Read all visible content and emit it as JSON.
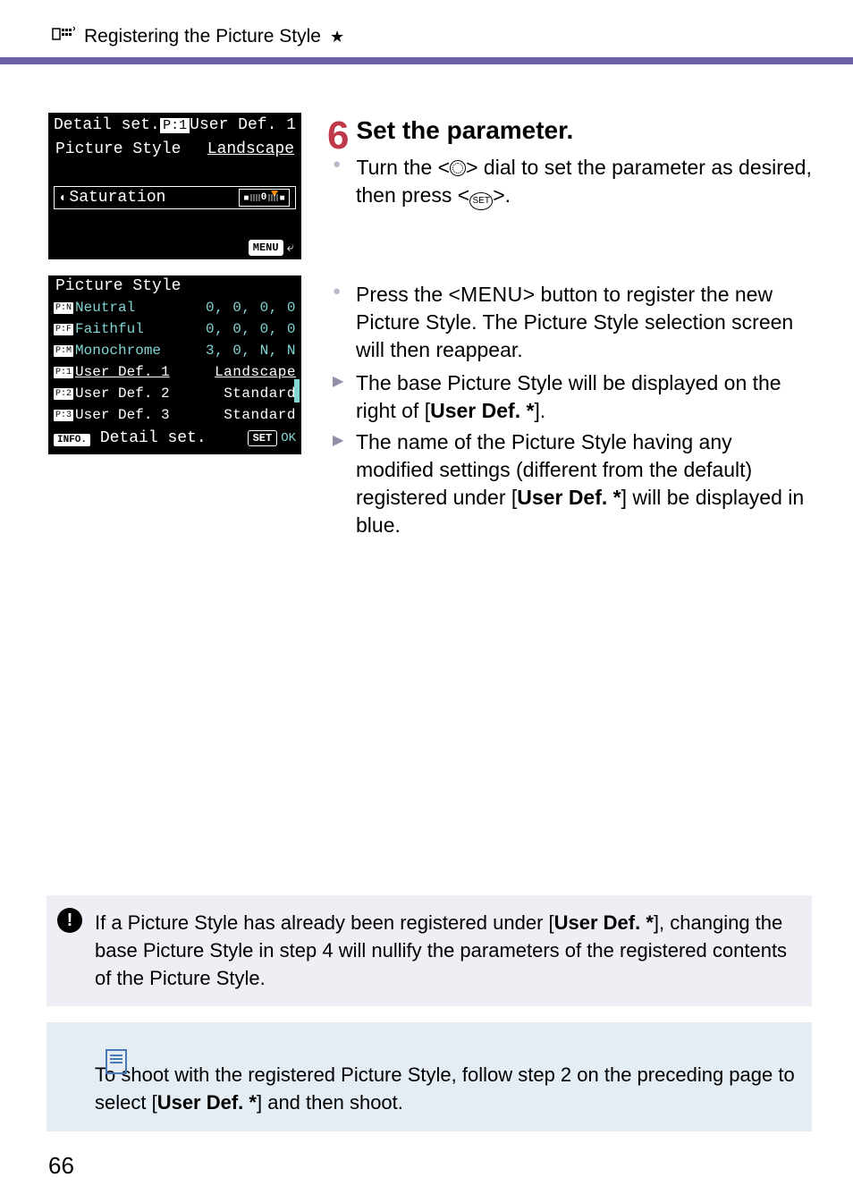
{
  "header": {
    "icon_label": "picture-style-icon",
    "title": "Registering the Picture Style",
    "star": "★"
  },
  "lcd1": {
    "row1_left": "Detail set.",
    "row1_right_icon": "P:1",
    "row1_right": "User Def. 1",
    "row2_left": "Picture Style",
    "row2_right": "Landscape",
    "sat_icon": "⚡",
    "sat_label": "Saturation",
    "menu_label": "MENU",
    "return_glyph": "⤶"
  },
  "lcd2": {
    "title": "Picture Style",
    "rows": [
      {
        "icon": "P:N",
        "name": "Neutral",
        "vals": "0, 0, 0, 0",
        "cls": ""
      },
      {
        "icon": "P:F",
        "name": "Faithful",
        "vals": "0, 0, 0, 0",
        "cls": ""
      },
      {
        "icon": "P:M",
        "name": "Monochrome",
        "vals": "3, 0, N, N",
        "cls": ""
      },
      {
        "icon": "P:1",
        "name": "User Def. 1",
        "vals": "Landscape",
        "cls": "highlight"
      },
      {
        "icon": "P:2",
        "name": "User Def. 2",
        "vals": "Standard",
        "cls": "white"
      },
      {
        "icon": "P:3",
        "name": "User Def. 3",
        "vals": "Standard",
        "cls": "white"
      }
    ],
    "footer_info": "INFO.",
    "footer_text": "Detail set.",
    "footer_set": "SET",
    "footer_ok": "OK"
  },
  "step": {
    "num": "6",
    "title": "Set the parameter.",
    "b1_a": "Turn the <",
    "b1_b": "> dial to set the parameter as desired, then press <",
    "b1_c": ">.",
    "set_txt": "SET",
    "b2_a": "Press the <",
    "b2_menu": "MENU",
    "b2_b": "> button to register the new Picture Style. The Picture Style selection screen will then reappear.",
    "t1_a": "The base Picture Style will be displayed on the right of [",
    "t1_bold": "User Def. *",
    "t1_b": "].",
    "t2_a": "The name of the Picture Style having any modified settings (different from the default) registered under [",
    "t2_bold": "User Def. *",
    "t2_b": "] will be displayed in blue."
  },
  "note1": {
    "a": "If a Picture Style has already been registered under [",
    "bold": "User Def. *",
    "b": "], changing the base Picture Style in step 4 will nullify the parameters of the registered contents of the Picture Style."
  },
  "note2": {
    "a": "To shoot with the registered Picture Style, follow step 2 on the preceding page to select [",
    "bold": "User Def. *",
    "b": "] and then shoot."
  },
  "page_number": "66"
}
